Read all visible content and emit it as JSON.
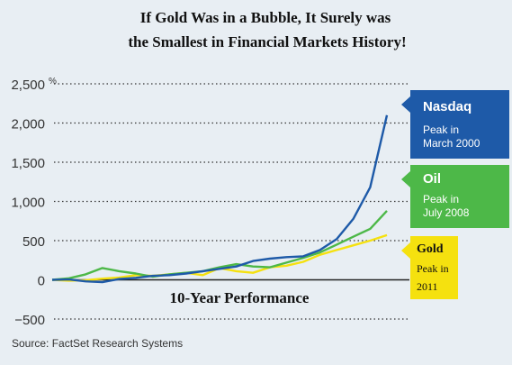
{
  "chart_data": {
    "type": "line",
    "title_lines": [
      "If Gold Was in a Bubble, It Surely was",
      "the Smallest in Financial Markets History!"
    ],
    "subtitle": "10-Year Performance",
    "ylabel_unit": "%",
    "source": "Source: FactSet Research Systems",
    "ylim": [
      -500,
      2500
    ],
    "yticks": [
      2500,
      2000,
      1500,
      1000,
      500,
      0,
      -500
    ],
    "ytick_labels": [
      "2,500",
      "2,000",
      "1,500",
      "1,000",
      "500",
      "0",
      "−500"
    ],
    "grid": true,
    "x": [
      0,
      0.5,
      1,
      1.5,
      2,
      2.5,
      3,
      3.5,
      4,
      4.5,
      5,
      5.5,
      6,
      6.5,
      7,
      7.5,
      8,
      8.5,
      9,
      9.5,
      10
    ],
    "series": [
      {
        "name": "Nasdaq",
        "color": "#1e5aa8",
        "label_sub": [
          "Peak in",
          "March 2000"
        ],
        "values": [
          0,
          5,
          -20,
          -30,
          10,
          25,
          50,
          60,
          80,
          110,
          140,
          170,
          240,
          270,
          290,
          300,
          380,
          520,
          780,
          1180,
          2100
        ]
      },
      {
        "name": "Oil",
        "color": "#4db848",
        "label_sub": [
          "Peak in",
          "July 2008"
        ],
        "values": [
          0,
          20,
          70,
          150,
          110,
          80,
          40,
          70,
          90,
          110,
          160,
          200,
          170,
          160,
          220,
          280,
          350,
          450,
          550,
          650,
          880
        ]
      },
      {
        "name": "Gold",
        "color": "#f5e10f",
        "label_sub": [
          "Peak in",
          "2011"
        ],
        "values": [
          0,
          -10,
          -5,
          15,
          30,
          60,
          50,
          70,
          90,
          60,
          150,
          110,
          90,
          160,
          180,
          230,
          320,
          380,
          440,
          500,
          570
        ]
      }
    ]
  }
}
